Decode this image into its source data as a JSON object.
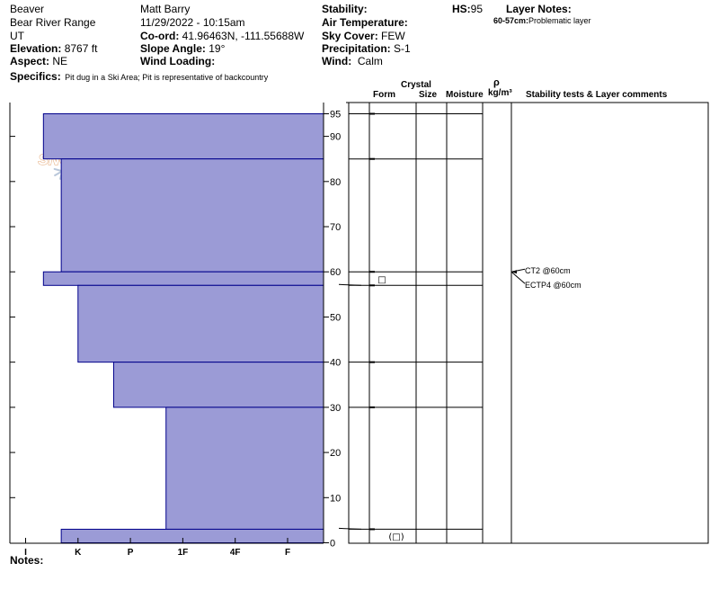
{
  "header": {
    "location": "Beaver",
    "range": "Bear River Range",
    "state": "UT",
    "elevation_label": "Elevation:",
    "elevation_value": "8767 ft",
    "aspect_label": "Aspect:",
    "aspect_value": "NE",
    "specifics_label": "Specifics:",
    "specifics_value": "Pit dug in a Ski Area; Pit is representative of backcountry",
    "observer": "Matt Barry",
    "datetime": "11/29/2022 - 10:15am",
    "coord_label": "Co-ord:",
    "coord_value": "41.96463N, -111.55688W",
    "slope_label": "Slope Angle:",
    "slope_value": "19°",
    "wind_loading_label": "Wind Loading:",
    "stability_label": "Stability:",
    "air_temp_label": "Air Temperature:",
    "sky_label": "Sky Cover:",
    "sky_value": "FEW",
    "precip_label": "Precipitation:",
    "precip_value": "S-1",
    "wind_label": "Wind:",
    "wind_value": "Calm",
    "hs_label": "HS:",
    "hs_value": "95",
    "layer_notes_label": "Layer Notes:",
    "layer_note_range": "60-57cm:",
    "layer_note_text": "Problematic layer"
  },
  "columns": {
    "crystal": "Crystal",
    "form": "Form",
    "size": "Size",
    "moisture": "Moisture",
    "rho": "ρ",
    "density_unit": "kg/m³",
    "stability_comments": "Stability tests & Layer comments"
  },
  "logo_text": "SNOWPILOT",
  "notes_label": "Notes:",
  "colors": {
    "profile_fill": "#9b9bd6",
    "profile_stroke": "#00008b",
    "logo": "#e8b48a",
    "flake": "#b9c7da"
  },
  "chart_data": {
    "type": "area",
    "x_categories": [
      "I",
      "K",
      "P",
      "1F",
      "4F",
      "F"
    ],
    "y_ticks": [
      0,
      10,
      20,
      30,
      40,
      50,
      60,
      70,
      80,
      90,
      95
    ],
    "ylim": [
      0,
      95
    ],
    "layers": [
      {
        "top": 95,
        "bottom": 85,
        "hardness_index": 0.34
      },
      {
        "top": 85,
        "bottom": 60,
        "hardness_index": 0.68
      },
      {
        "top": 60,
        "bottom": 57,
        "hardness_index": 0.34
      },
      {
        "top": 57,
        "bottom": 40,
        "hardness_index": 1.0
      },
      {
        "top": 40,
        "bottom": 30,
        "hardness_index": 1.68
      },
      {
        "top": 30,
        "bottom": 3,
        "hardness_index": 2.68
      },
      {
        "top": 3,
        "bottom": 0,
        "hardness_index": 0.68
      }
    ],
    "layer_boundaries": [
      95,
      85,
      60,
      57,
      40,
      30,
      3
    ],
    "tests": [
      {
        "label": "CT2 @60cm",
        "depth": 60
      },
      {
        "label": "ECTP4 @60cm",
        "depth": 60
      }
    ],
    "crystal_symbols": [
      {
        "depth": 58.5,
        "symbol": "□"
      },
      {
        "depth": 1.5,
        "symbol": "(□)"
      }
    ]
  }
}
